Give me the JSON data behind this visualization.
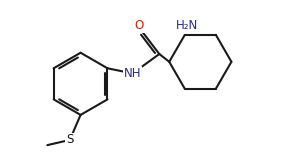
{
  "background": "#ffffff",
  "line_color": "#1a1a1a",
  "line_width": 1.5,
  "N_color": "#2a2a8a",
  "O_color": "#cc2200",
  "figsize": [
    2.95,
    1.59
  ],
  "dpi": 100,
  "xlim": [
    0.2,
    7.0
  ],
  "ylim": [
    0.5,
    3.8
  ]
}
